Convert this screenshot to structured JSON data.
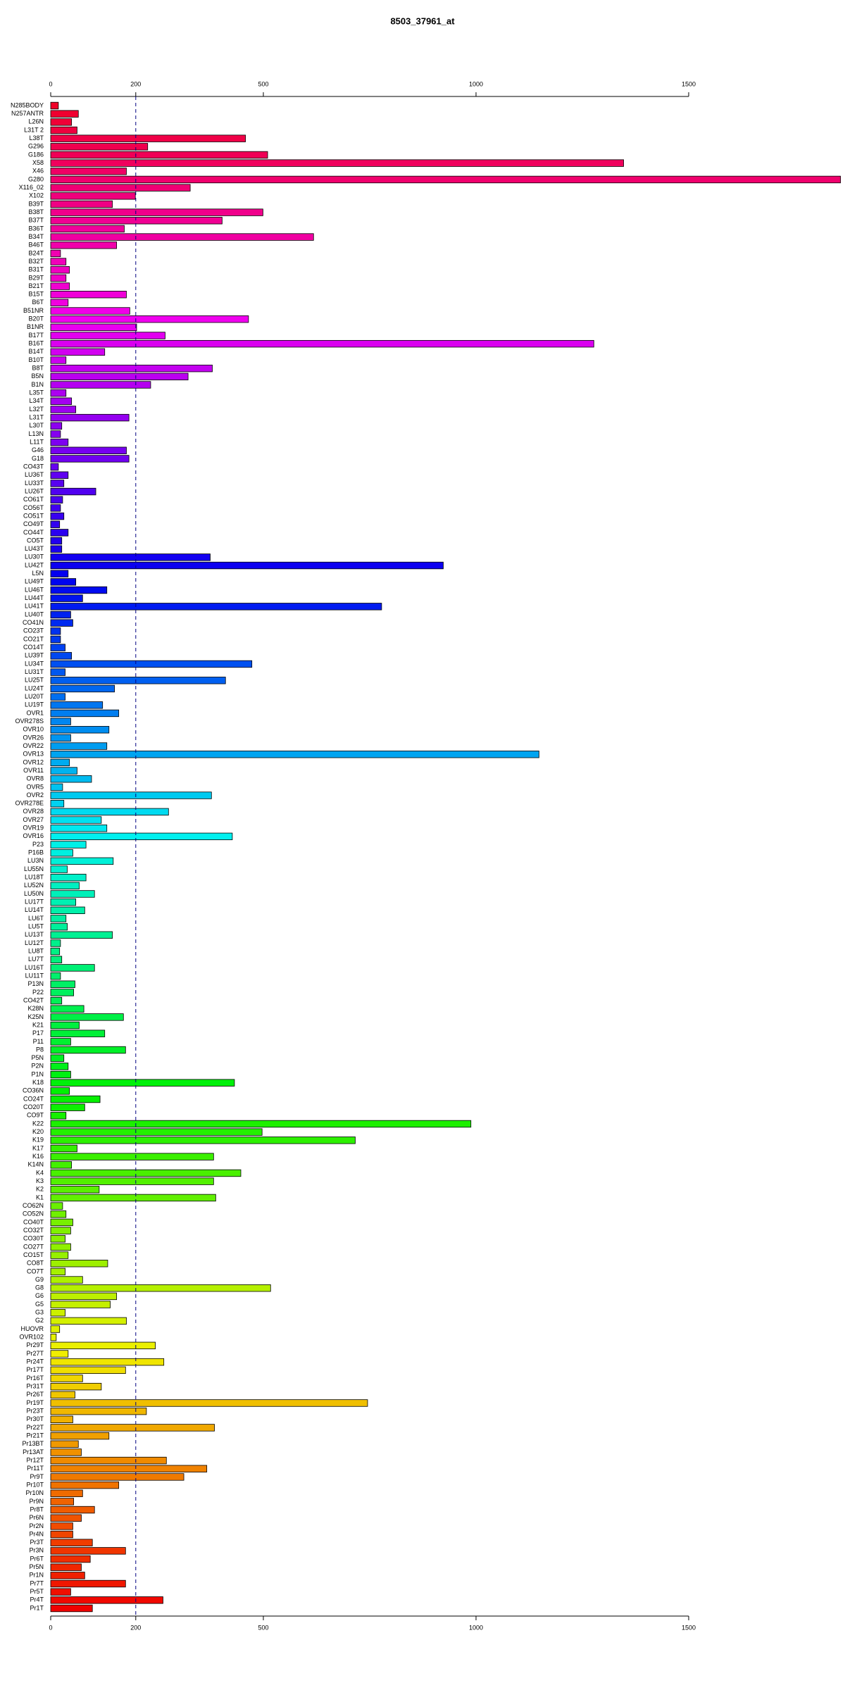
{
  "chart_data": {
    "type": "bar",
    "orientation": "horizontal",
    "title": "8503_37961_at",
    "categories": [
      "N285BODY",
      "N257ANTR",
      "L26N",
      "L31T 2",
      "L38T",
      "G296",
      "G186",
      "X58",
      "X46",
      "G280",
      "X116_02",
      "X102",
      "B39T",
      "B38T",
      "B37T",
      "B36T",
      "B34T",
      "B46T",
      "B24T",
      "B32T",
      "B31T",
      "B29T",
      "B21T",
      "B15T",
      "B6T",
      "B51NR",
      "B20T",
      "B1NR",
      "B17T",
      "B16T",
      "B14T",
      "B10T",
      "B8T",
      "B5N",
      "B1N",
      "L35T",
      "L34T",
      "L32T",
      "L31T",
      "L30T",
      "L13N",
      "L11T",
      "G46",
      "G18",
      "CO43T",
      "LU36T",
      "LU33T",
      "LU26T",
      "CO61T",
      "CO56T",
      "CO51T",
      "CO49T",
      "CO44T",
      "CO5T",
      "LU43T",
      "LU30T",
      "LU42T",
      "L5N",
      "LU49T",
      "LU46T",
      "LU44T",
      "LU41T",
      "LU40T",
      "CO41N",
      "CO23T",
      "CO21T",
      "CO14T",
      "LU39T",
      "LU34T",
      "LU31T",
      "LU25T",
      "LU24T",
      "LU20T",
      "LU19T",
      "OVR1",
      "OVR278S",
      "OVR10",
      "OVR26",
      "OVR22",
      "OVR13",
      "OVR12",
      "OVR11",
      "OVR8",
      "OVR5",
      "OVR2",
      "OVR278E",
      "OVR28",
      "OVR27",
      "OVR19",
      "OVR16",
      "P23",
      "P16B",
      "LU3N",
      "LU55N",
      "LU18T",
      "LU52N",
      "LU50N",
      "LU17T",
      "LU14T",
      "LU6T",
      "LU5T",
      "LU13T",
      "LU12T",
      "LU8T",
      "LU7T",
      "LU16T",
      "LU11T",
      "P13N",
      "P22",
      "CO42T",
      "K28N",
      "K25N",
      "K21",
      "P17",
      "P11",
      "P8",
      "P5N",
      "P2N",
      "P1N",
      "K18",
      "CO36N",
      "CO24T",
      "CO20T",
      "CO9T",
      "K22",
      "K20",
      "K19",
      "K17",
      "K16",
      "K14N",
      "K4",
      "K3",
      "K2",
      "K1",
      "CO62N",
      "CO52N",
      "CO40T",
      "CO32T",
      "CO30T",
      "CO27T",
      "CO15T",
      "CO8T",
      "CO7T",
      "G9",
      "G8",
      "G6",
      "G5",
      "G3",
      "G2",
      "HUOVR",
      "OVR102",
      "Pr29T",
      "Pr27T",
      "Pr24T",
      "Pr17T",
      "Pr16T",
      "Pr31T",
      "Pr26T",
      "Pr19T",
      "Pr23T",
      "Pr30T",
      "Pr22T",
      "Pr21T",
      "Pr13BT",
      "Pr13AT",
      "Pr12T",
      "Pr11T",
      "Pr9T",
      "Pr10T",
      "Pr10N",
      "Pr9N",
      "Pr8T",
      "Pr6N",
      "Pr2N",
      "Pr4N",
      "Pr3T",
      "Pr3N",
      "Pr6T",
      "Pr5N",
      "Pr1N",
      "Pr7T",
      "Pr5T",
      "Pr4T",
      "Pr1T"
    ],
    "values": [
      18,
      65,
      49,
      62,
      458,
      228,
      510,
      1347,
      178,
      1857,
      328,
      199,
      145,
      499,
      403,
      173,
      618,
      155,
      23,
      36,
      44,
      36,
      44,
      178,
      41,
      186,
      465,
      202,
      269,
      1277,
      127,
      36,
      380,
      323,
      235,
      36,
      49,
      59,
      184,
      26,
      23,
      41,
      178,
      184,
      18,
      41,
      31,
      106,
      28,
      23,
      31,
      21,
      41,
      26,
      26,
      375,
      923,
      41,
      59,
      132,
      75,
      778,
      47,
      52,
      23,
      23,
      34,
      49,
      473,
      34,
      411,
      150,
      34,
      122,
      160,
      47,
      137,
      47,
      132,
      1148,
      44,
      62,
      96,
      28,
      378,
      31,
      277,
      119,
      132,
      427,
      83,
      52,
      147,
      39,
      83,
      67,
      103,
      59,
      80,
      36,
      39,
      145,
      23,
      21,
      26,
      103,
      23,
      57,
      54,
      26,
      78,
      171,
      67,
      127,
      47,
      176,
      31,
      41,
      47,
      432,
      44,
      116,
      80,
      36,
      988,
      497,
      716,
      62,
      383,
      49,
      447,
      383,
      114,
      388,
      28,
      36,
      52,
      47,
      34,
      47,
      41,
      134,
      34,
      75,
      517,
      155,
      140,
      34,
      178,
      21,
      13,
      246,
      41,
      266,
      176,
      75,
      119,
      57,
      745,
      225,
      52,
      385,
      137,
      65,
      72,
      272,
      367,
      313,
      160,
      75,
      54,
      103,
      72,
      52,
      52,
      98,
      176,
      93,
      72,
      80,
      176,
      47,
      264,
      98
    ],
    "colormap": "rainbow",
    "xlim": [
      0,
      1860
    ],
    "xticks": [
      0,
      200,
      500,
      1000,
      1500
    ],
    "vline": 200
  }
}
